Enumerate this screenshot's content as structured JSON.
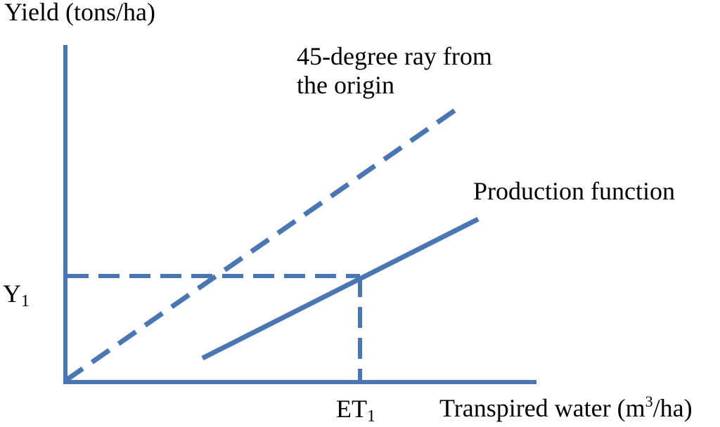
{
  "colors": {
    "line": "#4a76b4",
    "text": "#000000"
  },
  "labels": {
    "y_axis": "Yield (tons/ha)",
    "ray_line1": "45-degree ray from",
    "ray_line2": "the origin",
    "production_function": "Production function",
    "y1_base": "Y",
    "y1_sub": "1",
    "et1_base": "ET",
    "et1_sub": "1",
    "x_axis_prefix": "Transpired water (m",
    "x_axis_sup": "3",
    "x_axis_suffix": "/ha)"
  }
}
